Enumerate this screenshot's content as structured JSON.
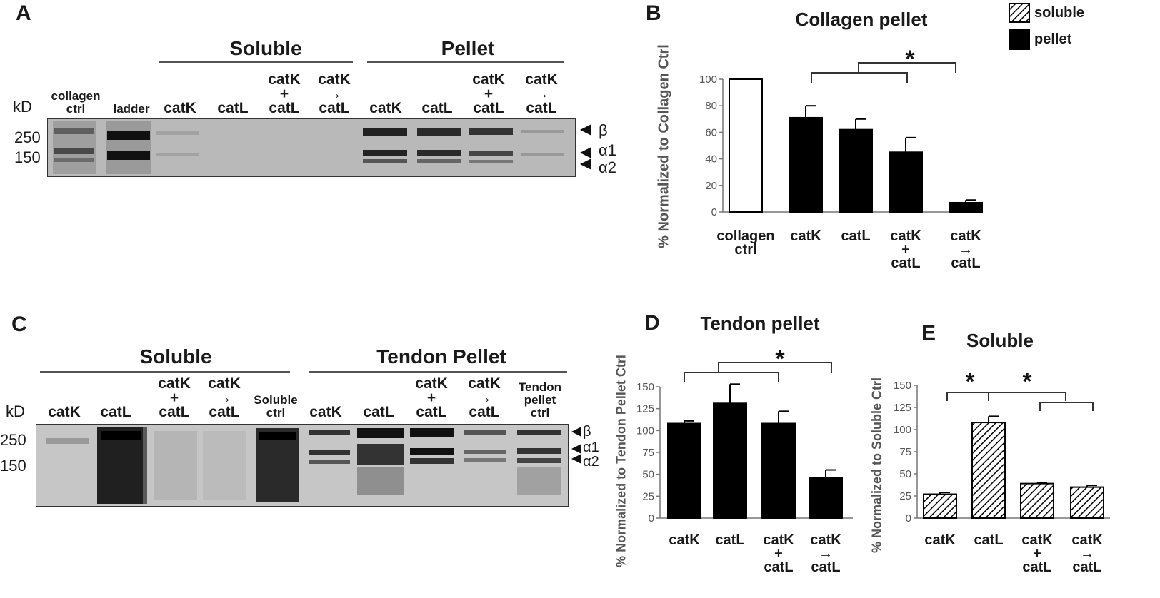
{
  "panel_letters": {
    "a": "A",
    "b": "B",
    "c": "C",
    "d": "D",
    "e": "E"
  },
  "gel_a": {
    "group_soluble": "Soluble",
    "group_pellet": "Pellet",
    "kd": "kD",
    "lanes": [
      [
        "collagen",
        "ctrl"
      ],
      [
        "ladder"
      ],
      [
        "catK"
      ],
      [
        "catL"
      ],
      [
        "catK",
        "+",
        "catL"
      ],
      [
        "catK",
        "→",
        "catL"
      ],
      [
        "catK"
      ],
      [
        "catL"
      ],
      [
        "catK",
        "+",
        "catL"
      ],
      [
        "catK",
        "→",
        "catL"
      ]
    ],
    "markers": [
      "250",
      "150"
    ],
    "bands": [
      "β",
      "α1",
      "α2"
    ]
  },
  "gel_c": {
    "group_soluble": "Soluble",
    "group_pellet": "Tendon Pellet",
    "kd": "kD",
    "lanes": [
      [
        "catK"
      ],
      [
        "catL"
      ],
      [
        "catK",
        "+",
        "catL"
      ],
      [
        "catK",
        "→",
        "catL"
      ],
      [
        "Soluble",
        "ctrl"
      ],
      [
        "catK"
      ],
      [
        "catL"
      ],
      [
        "catK",
        "+",
        "catL"
      ],
      [
        "catK",
        "→",
        "catL"
      ],
      [
        "Tendon",
        "pellet",
        "ctrl"
      ]
    ],
    "markers": [
      "250",
      "150"
    ],
    "bands": [
      "β",
      "α1",
      "α2"
    ]
  },
  "legend": {
    "soluble": "soluble",
    "pellet": "pellet"
  },
  "significance": "*",
  "chart_data": [
    {
      "panel": "B",
      "type": "bar",
      "title": "Collagen pellet",
      "ylabel": "% Normalized to Collagen Ctrl",
      "categories": [
        [
          "collagen",
          "ctrl"
        ],
        [
          "catK"
        ],
        [
          "catL"
        ],
        [
          "catK",
          "+",
          "catL"
        ],
        [
          "catK",
          "→",
          "catL"
        ]
      ],
      "values": [
        100,
        71,
        62,
        45,
        7
      ],
      "errors": [
        0,
        9,
        8,
        11,
        2
      ],
      "styles": [
        "open",
        "solid",
        "solid",
        "solid",
        "solid"
      ],
      "ylim": [
        0,
        100
      ],
      "yticks": [
        0,
        20,
        40,
        60,
        80,
        100
      ]
    },
    {
      "panel": "D",
      "type": "bar",
      "title": "Tendon pellet",
      "ylabel": "% Normalized to Tendon Pellet Ctrl",
      "categories": [
        [
          "catK"
        ],
        [
          "catL"
        ],
        [
          "catK",
          "+",
          "catL"
        ],
        [
          "catK",
          "→",
          "catL"
        ]
      ],
      "values": [
        108,
        131,
        108,
        46
      ],
      "errors": [
        3,
        22,
        14,
        9
      ],
      "styles": [
        "solid",
        "solid",
        "solid",
        "solid"
      ],
      "ylim": [
        0,
        150
      ],
      "yticks": [
        0,
        25,
        50,
        75,
        100,
        125,
        150
      ]
    },
    {
      "panel": "E",
      "type": "bar",
      "title": "Soluble",
      "ylabel": "% Normalized to Soluble Ctrl",
      "categories": [
        [
          "catK"
        ],
        [
          "catL"
        ],
        [
          "catK",
          "+",
          "catL"
        ],
        [
          "catK",
          "→",
          "catL"
        ]
      ],
      "values": [
        27,
        108,
        39,
        35
      ],
      "errors": [
        2,
        7,
        1,
        2
      ],
      "styles": [
        "hatched",
        "hatched",
        "hatched",
        "hatched"
      ],
      "ylim": [
        0,
        150
      ],
      "yticks": [
        0,
        25,
        50,
        75,
        100,
        125,
        150
      ]
    }
  ],
  "colors": {
    "pellet": "#000000",
    "open": "#ffffff",
    "axis": "#666666"
  }
}
